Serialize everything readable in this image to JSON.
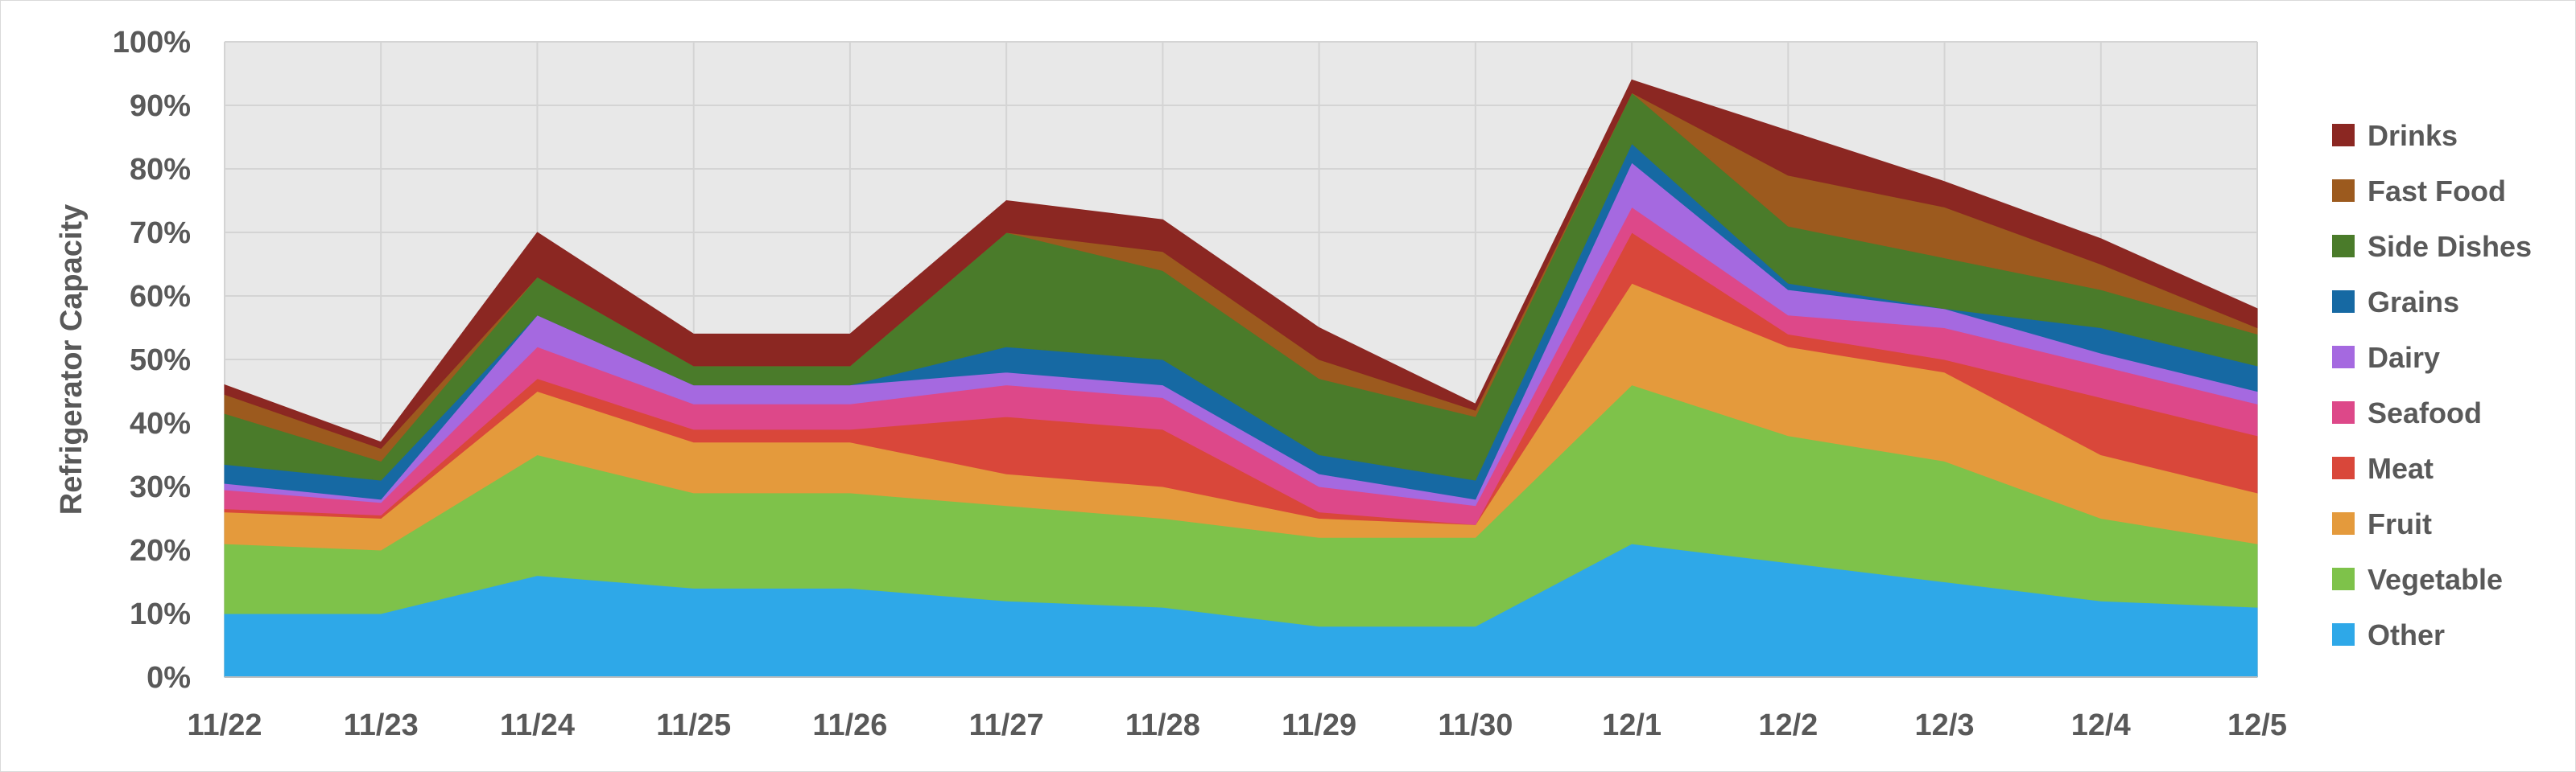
{
  "chart_data": {
    "type": "area",
    "stacked": true,
    "ylabel": "Refrigerator Capacity",
    "xlabel": "",
    "ylim": [
      0,
      100
    ],
    "y_ticks": [
      "0%",
      "10%",
      "20%",
      "30%",
      "40%",
      "50%",
      "60%",
      "70%",
      "80%",
      "90%",
      "100%"
    ],
    "categories": [
      "11/22",
      "11/23",
      "11/24",
      "11/25",
      "11/26",
      "11/27",
      "11/28",
      "11/29",
      "11/30",
      "12/1",
      "12/2",
      "12/3",
      "12/4",
      "12/5"
    ],
    "grid": true,
    "legend_position": "right",
    "plot_background": "#e8e8e8",
    "series": [
      {
        "name": "Other",
        "color": "#2ea8e8",
        "values": [
          10,
          10,
          16,
          14,
          14,
          12,
          11,
          8,
          8,
          21,
          18,
          15,
          12,
          11
        ]
      },
      {
        "name": "Vegetable",
        "color": "#7ec24a",
        "values": [
          11,
          10,
          19,
          15,
          15,
          15,
          14,
          14,
          14,
          25,
          20,
          19,
          13,
          10
        ]
      },
      {
        "name": "Fruit",
        "color": "#e49a3c",
        "values": [
          5,
          5,
          10,
          8,
          8,
          5,
          5,
          3,
          2,
          16,
          14,
          14,
          10,
          8
        ]
      },
      {
        "name": "Meat",
        "color": "#d9473a",
        "values": [
          0.5,
          0.5,
          2,
          2,
          2,
          9,
          9,
          1,
          0,
          8,
          2,
          2,
          9,
          9
        ]
      },
      {
        "name": "Seafood",
        "color": "#dd4889",
        "values": [
          3,
          2,
          5,
          4,
          4,
          5,
          5,
          4,
          3,
          4,
          3,
          5,
          5,
          5
        ]
      },
      {
        "name": "Dairy",
        "color": "#a569e0",
        "values": [
          1,
          0.5,
          5,
          3,
          3,
          2,
          2,
          2,
          1,
          7,
          4,
          3,
          2,
          2
        ]
      },
      {
        "name": "Grains",
        "color": "#1669a3",
        "values": [
          3,
          3,
          0,
          0,
          0,
          4,
          4,
          3,
          3,
          3,
          1,
          0,
          4,
          4
        ]
      },
      {
        "name": "Side Dishes",
        "color": "#4a7b2a",
        "values": [
          8,
          3,
          6,
          3,
          3,
          18,
          14,
          12,
          10,
          8,
          9,
          8,
          6,
          5
        ]
      },
      {
        "name": "Fast Food",
        "color": "#9c5a1e",
        "values": [
          3,
          2,
          0,
          0,
          0,
          0,
          3,
          3,
          1,
          0,
          8,
          8,
          4,
          1
        ]
      },
      {
        "name": "Drinks",
        "color": "#8b2722",
        "values": [
          1.5,
          1,
          7,
          5,
          5,
          5,
          5,
          5,
          1,
          2,
          7,
          4,
          4,
          3
        ]
      }
    ]
  }
}
